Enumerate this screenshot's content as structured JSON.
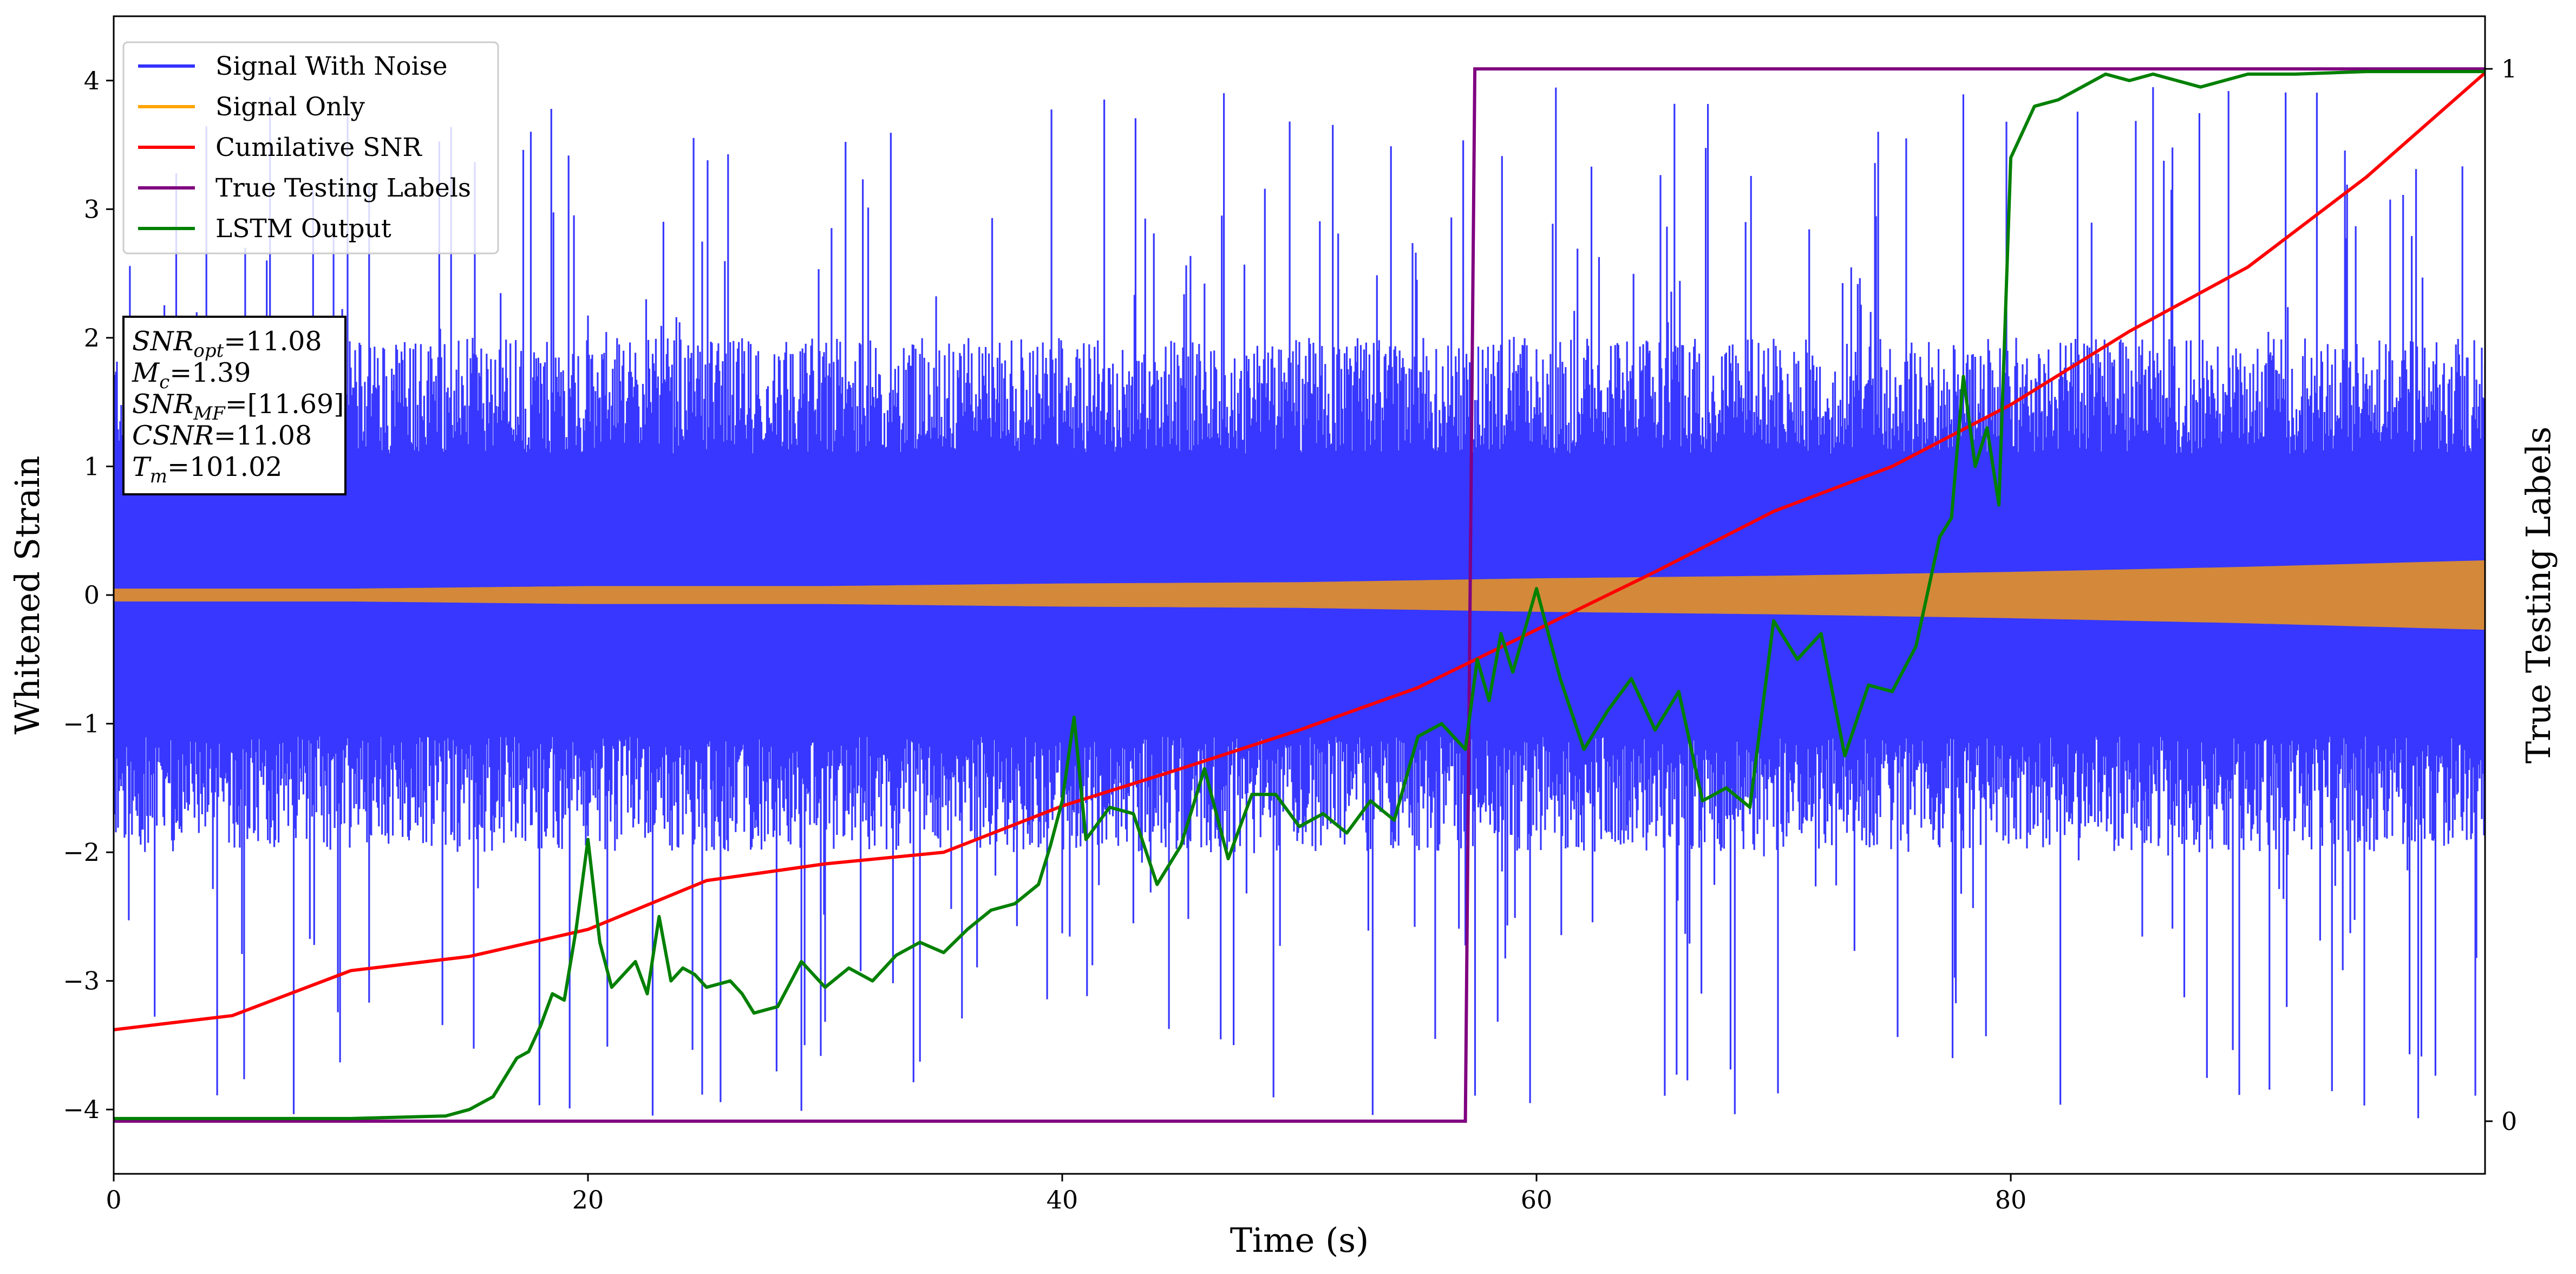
{
  "chart_data": {
    "type": "line",
    "xlabel": "Time (s)",
    "ylabel": "Whitened Strain",
    "y2label": "True Testing Labels",
    "xlim": [
      0,
      100
    ],
    "ylim": [
      -4.5,
      4.5
    ],
    "y2lim": [
      -0.05,
      1.05
    ],
    "x_ticks": [
      0,
      20,
      40,
      60,
      80
    ],
    "x_tick_labels": [
      "0",
      "20",
      "40",
      "60",
      "80"
    ],
    "y_ticks": [
      -4,
      -3,
      -2,
      -1,
      0,
      1,
      2,
      3,
      4
    ],
    "y_tick_labels": [
      "−4",
      "−3",
      "−2",
      "−1",
      "0",
      "1",
      "2",
      "3",
      "4"
    ],
    "y2_ticks": [
      0,
      1
    ],
    "y2_tick_labels": [
      "0",
      "1"
    ],
    "grid": false,
    "legend_position": "top-left",
    "colors": {
      "signal_with_noise": "#3333ff",
      "signal_only": "#ffa500",
      "cumulative_snr": "#ff0000",
      "true_labels": "#800080",
      "lstm_output": "#008000"
    },
    "series": [
      {
        "name": "Signal With Noise",
        "axis": "left",
        "description_values": "dense noise band approx. between -2 and +2 with spikes up to 4 and down to -4.1",
        "noise_band": [
          -2.0,
          2.0
        ],
        "max": 3.95,
        "min": -4.1
      },
      {
        "name": "Signal Only",
        "axis": "left",
        "x": [
          0,
          10,
          20,
          30,
          40,
          50,
          60,
          70,
          80,
          90,
          100
        ],
        "amplitude": [
          0.05,
          0.05,
          0.07,
          0.07,
          0.09,
          0.1,
          0.13,
          0.15,
          0.18,
          0.22,
          0.27
        ]
      },
      {
        "name": "Cumilative SNR",
        "axis": "left",
        "x": [
          0,
          5,
          10,
          15,
          20,
          25,
          30,
          35,
          40,
          45,
          50,
          55,
          60,
          65,
          70,
          75,
          80,
          85,
          90,
          95,
          100
        ],
        "y": [
          -3.38,
          -3.27,
          -2.92,
          -2.81,
          -2.6,
          -2.22,
          -2.09,
          -2.0,
          -1.64,
          -1.35,
          -1.05,
          -0.72,
          -0.27,
          0.18,
          0.65,
          1.0,
          1.48,
          2.05,
          2.55,
          3.25,
          4.06
        ]
      },
      {
        "name": "True Testing Labels",
        "axis": "right",
        "x": [
          0,
          57.0,
          57.4,
          100
        ],
        "y": [
          0,
          0,
          1,
          1
        ]
      },
      {
        "name": "LSTM Output",
        "axis": "left",
        "x": [
          0,
          10,
          14,
          15,
          16,
          16.5,
          17,
          17.5,
          18,
          18.5,
          19,
          19.5,
          20,
          20.5,
          21,
          22,
          22.5,
          23,
          23.5,
          24,
          24.5,
          25,
          26,
          26.5,
          27,
          28,
          29,
          30,
          31,
          32,
          33,
          34,
          35,
          36,
          37,
          38,
          39,
          39.5,
          40,
          40.5,
          41,
          42,
          43,
          44,
          45,
          46,
          47,
          48,
          49,
          50,
          51,
          52,
          53,
          54,
          55,
          56,
          57,
          57.5,
          58,
          58.5,
          59,
          60,
          61,
          62,
          63,
          64,
          65,
          66,
          67,
          68,
          69,
          70,
          71,
          72,
          73,
          74,
          75,
          76,
          77,
          77.5,
          78,
          78.5,
          79,
          79.5,
          80,
          81,
          82,
          83,
          84,
          85,
          86,
          88,
          90,
          92,
          95,
          100
        ],
        "y": [
          -4.07,
          -4.07,
          -4.05,
          -4.0,
          -3.9,
          -3.75,
          -3.6,
          -3.55,
          -3.35,
          -3.1,
          -3.15,
          -2.6,
          -1.9,
          -2.7,
          -3.05,
          -2.85,
          -3.1,
          -2.5,
          -3.0,
          -2.9,
          -2.95,
          -3.05,
          -3.0,
          -3.1,
          -3.25,
          -3.2,
          -2.85,
          -3.05,
          -2.9,
          -3.0,
          -2.8,
          -2.7,
          -2.78,
          -2.6,
          -2.45,
          -2.4,
          -2.25,
          -1.95,
          -1.6,
          -0.95,
          -1.9,
          -1.65,
          -1.7,
          -2.25,
          -1.95,
          -1.35,
          -2.05,
          -1.55,
          -1.55,
          -1.8,
          -1.7,
          -1.85,
          -1.6,
          -1.75,
          -1.1,
          -1.0,
          -1.2,
          -0.5,
          -0.82,
          -0.3,
          -0.6,
          0.05,
          -0.65,
          -1.2,
          -0.9,
          -0.65,
          -1.05,
          -0.75,
          -1.6,
          -1.5,
          -1.65,
          -0.2,
          -0.5,
          -0.3,
          -1.25,
          -0.7,
          -0.75,
          -0.4,
          0.45,
          0.6,
          1.7,
          1.0,
          1.3,
          0.7,
          3.4,
          3.8,
          3.85,
          3.95,
          4.05,
          4.0,
          4.05,
          3.95,
          4.05,
          4.05,
          4.07,
          4.07
        ]
      }
    ],
    "annotation": {
      "lines": [
        {
          "base": "SNR",
          "sub": "opt",
          "value": "=11.08"
        },
        {
          "base": "M",
          "sub": "c",
          "value": "=1.39"
        },
        {
          "base": "SNR",
          "sub": "MF",
          "value": "=[11.69]"
        },
        {
          "base": "CSNR",
          "sub": "",
          "value": "=11.08"
        },
        {
          "base": "T",
          "sub": "m",
          "value": "=101.02"
        }
      ]
    }
  }
}
